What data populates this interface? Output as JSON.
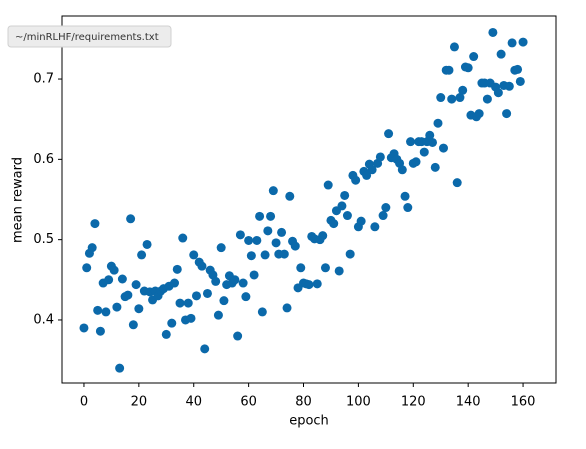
{
  "tooltip": "~/minRLHF/requirements.txt",
  "chart_data": {
    "type": "scatter",
    "xlabel": "epoch",
    "ylabel": "mean reward",
    "color": "#0b69aa",
    "xlim": [
      -8,
      172
    ],
    "ylim": [
      0.3215,
      0.7785
    ],
    "xticks": [
      0,
      20,
      40,
      60,
      80,
      100,
      120,
      140,
      160
    ],
    "yticks": [
      0.4,
      0.5,
      0.6,
      0.7
    ],
    "x": [
      0,
      1,
      2,
      3,
      4,
      5,
      6,
      7,
      8,
      9,
      10,
      11,
      12,
      13,
      14,
      15,
      16,
      17,
      18,
      19,
      20,
      21,
      22,
      23,
      24,
      25,
      26,
      27,
      28,
      29,
      30,
      31,
      32,
      33,
      34,
      35,
      36,
      37,
      38,
      39,
      40,
      41,
      42,
      43,
      44,
      45,
      46,
      47,
      48,
      49,
      50,
      51,
      52,
      53,
      54,
      55,
      56,
      57,
      58,
      59,
      60,
      61,
      62,
      63,
      64,
      65,
      66,
      67,
      68,
      69,
      70,
      71,
      72,
      73,
      74,
      75,
      76,
      77,
      78,
      79,
      80,
      81,
      82,
      83,
      84,
      85,
      86,
      87,
      88,
      89,
      90,
      91,
      92,
      93,
      94,
      95,
      96,
      97,
      98,
      99,
      100,
      101,
      102,
      103,
      104,
      105,
      106,
      107,
      108,
      109,
      110,
      111,
      112,
      113,
      114,
      115,
      116,
      117,
      118,
      119,
      120,
      121,
      122,
      123,
      124,
      125,
      126,
      127,
      128,
      129,
      130,
      131,
      132,
      133,
      134,
      135,
      136,
      137,
      138,
      139,
      140,
      141,
      142,
      143,
      144,
      145,
      146,
      147,
      148,
      149,
      150,
      151,
      152,
      153,
      154,
      155,
      156,
      157,
      158,
      159,
      160
    ],
    "values": [
      0.39,
      0.465,
      0.483,
      0.49,
      0.52,
      0.412,
      0.386,
      0.446,
      0.41,
      0.45,
      0.467,
      0.462,
      0.416,
      0.34,
      0.451,
      0.429,
      0.431,
      0.526,
      0.394,
      0.444,
      0.414,
      0.481,
      0.436,
      0.494,
      0.435,
      0.425,
      0.436,
      0.43,
      0.436,
      0.439,
      0.382,
      0.442,
      0.396,
      0.446,
      0.463,
      0.421,
      0.502,
      0.4,
      0.421,
      0.402,
      0.481,
      0.43,
      0.472,
      0.467,
      0.364,
      0.433,
      0.462,
      0.456,
      0.448,
      0.406,
      0.49,
      0.424,
      0.444,
      0.455,
      0.446,
      0.45,
      0.38,
      0.506,
      0.446,
      0.429,
      0.499,
      0.48,
      0.456,
      0.499,
      0.529,
      0.41,
      0.481,
      0.511,
      0.529,
      0.561,
      0.496,
      0.482,
      0.509,
      0.482,
      0.415,
      0.554,
      0.498,
      0.492,
      0.44,
      0.465,
      0.446,
      0.445,
      0.444,
      0.504,
      0.501,
      0.445,
      0.5,
      0.505,
      0.465,
      0.568,
      0.524,
      0.52,
      0.536,
      0.461,
      0.542,
      0.555,
      0.53,
      0.482,
      0.58,
      0.574,
      0.516,
      0.523,
      0.585,
      0.58,
      0.594,
      0.587,
      0.516,
      0.595,
      0.603,
      0.53,
      0.54,
      0.632,
      0.602,
      0.607,
      0.6,
      0.595,
      0.587,
      0.554,
      0.54,
      0.622,
      0.595,
      0.597,
      0.622,
      0.622,
      0.609,
      0.622,
      0.63,
      0.621,
      0.59,
      0.645,
      0.677,
      0.614,
      0.711,
      0.711,
      0.675,
      0.74,
      0.571,
      0.677,
      0.686,
      0.715,
      0.714,
      0.655,
      0.728,
      0.653,
      0.657,
      0.695,
      0.695,
      0.675,
      0.695,
      0.758,
      0.69,
      0.683,
      0.731,
      0.692,
      0.657,
      0.691,
      0.745,
      0.711,
      0.712,
      0.697,
      0.746
    ]
  }
}
